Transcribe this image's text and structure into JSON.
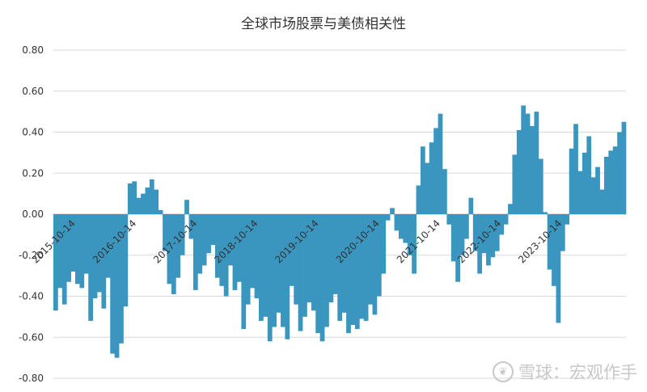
{
  "chart_data": {
    "type": "bar",
    "title": "全球市场股票与美债相关性",
    "xlabel": "",
    "ylabel": "",
    "ylim": [
      -0.8,
      0.8
    ],
    "yticks": [
      "0.80",
      "0.60",
      "0.40",
      "0.20",
      "0.00",
      "-0.20",
      "-0.40",
      "-0.60",
      "-0.80"
    ],
    "x_range": [
      "2015-06-01",
      "2024-10-31"
    ],
    "x_ticks": [
      "2015-10-14",
      "2016-10-14",
      "2017-10-14",
      "2018-10-14",
      "2019-10-14",
      "2020-10-14",
      "2021-10-14",
      "2022-10-14",
      "2023-10-14"
    ],
    "color": "#3a95bf",
    "series": [
      {
        "values_monthly": [
          -0.47,
          -0.36,
          -0.44,
          -0.33,
          -0.28,
          -0.34,
          -0.36,
          -0.29,
          -0.52,
          -0.41,
          -0.38,
          -0.46,
          -0.31,
          -0.68,
          -0.7,
          -0.63,
          -0.45,
          0.15,
          0.16,
          0.08,
          0.1,
          0.13,
          0.17,
          0.12,
          0.02,
          -0.18,
          -0.34,
          -0.39,
          -0.31,
          -0.2,
          0.07,
          -0.12,
          -0.37,
          -0.29,
          -0.25,
          -0.19,
          -0.15,
          -0.31,
          -0.35,
          -0.4,
          -0.25,
          -0.37,
          -0.33,
          -0.56,
          -0.44,
          -0.36,
          -0.41,
          -0.52,
          -0.5,
          -0.62,
          -0.55,
          -0.48,
          -0.55,
          -0.61,
          -0.35,
          -0.44,
          -0.57,
          -0.5,
          -0.43,
          -0.47,
          -0.58,
          -0.62,
          -0.55,
          -0.43,
          -0.39,
          -0.52,
          -0.48,
          -0.58,
          -0.54,
          -0.56,
          -0.51,
          -0.52,
          -0.44,
          -0.49,
          -0.4,
          -0.29,
          -0.03,
          0.03,
          -0.08,
          -0.12,
          -0.14,
          -0.2,
          -0.29,
          0.14,
          0.33,
          0.25,
          0.35,
          0.42,
          0.49,
          0.22,
          -0.05,
          -0.23,
          -0.33,
          -0.2,
          -0.12,
          0.08,
          -0.18,
          -0.29,
          -0.19,
          -0.25,
          -0.21,
          -0.18,
          -0.1,
          -0.05,
          0.05,
          0.29,
          0.41,
          0.53,
          0.49,
          0.43,
          0.5,
          0.27,
          0.01,
          -0.27,
          -0.35,
          -0.53,
          -0.18,
          -0.05,
          0.32,
          0.44,
          0.21,
          0.3,
          0.38,
          0.18,
          0.23,
          0.12,
          0.28,
          0.31,
          0.33,
          0.4,
          0.45
        ]
      }
    ]
  },
  "watermark": {
    "logo": "❦",
    "text": "雪球：宏观作手"
  }
}
